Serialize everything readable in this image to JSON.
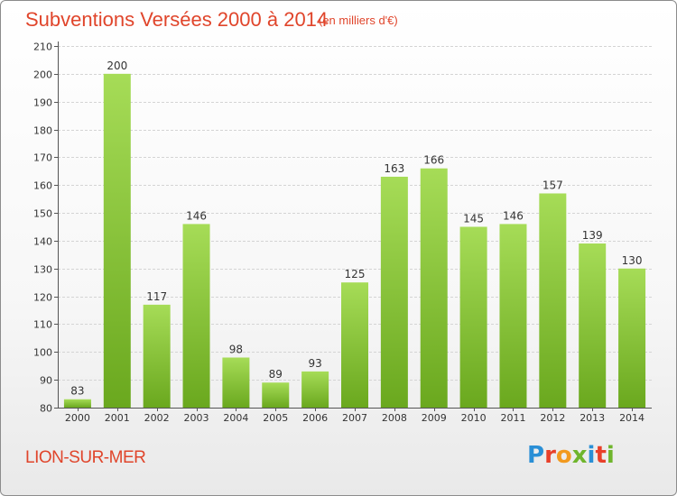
{
  "title": "Subventions Versées 2000 à 2014",
  "subtitle": "(en milliers d'€)",
  "commune": "LION-SUR-MER",
  "logo": {
    "letters": [
      {
        "char": "P",
        "color": "#2a8fd6"
      },
      {
        "char": "r",
        "color": "#e8402a"
      },
      {
        "char": "o",
        "color": "#f29a1f"
      },
      {
        "char": "x",
        "color": "#6fb52c"
      },
      {
        "char": "i",
        "color": "#2a8fd6"
      },
      {
        "char": "t",
        "color": "#e8402a"
      },
      {
        "char": "i",
        "color": "#6fb52c"
      }
    ]
  },
  "colors": {
    "accent": "#e0452b",
    "bar_light": "#a6dc57",
    "bar_dark": "#6aa81e",
    "axis": "#555555",
    "grid": "#d4d4d4"
  },
  "chart_data": {
    "type": "bar",
    "title": "Subventions Versées 2000 à 2014",
    "subtitle": "(en milliers d'€)",
    "categories": [
      "2000",
      "2001",
      "2002",
      "2003",
      "2004",
      "2005",
      "2006",
      "2007",
      "2008",
      "2009",
      "2010",
      "2011",
      "2012",
      "2013",
      "2014"
    ],
    "values": [
      83,
      200,
      117,
      146,
      98,
      89,
      93,
      125,
      163,
      166,
      145,
      146,
      157,
      139,
      130
    ],
    "ylim": [
      80,
      210
    ],
    "yticks": [
      80,
      90,
      100,
      110,
      120,
      130,
      140,
      150,
      160,
      170,
      180,
      190,
      200,
      210
    ],
    "grid": true,
    "data_labels": true
  }
}
